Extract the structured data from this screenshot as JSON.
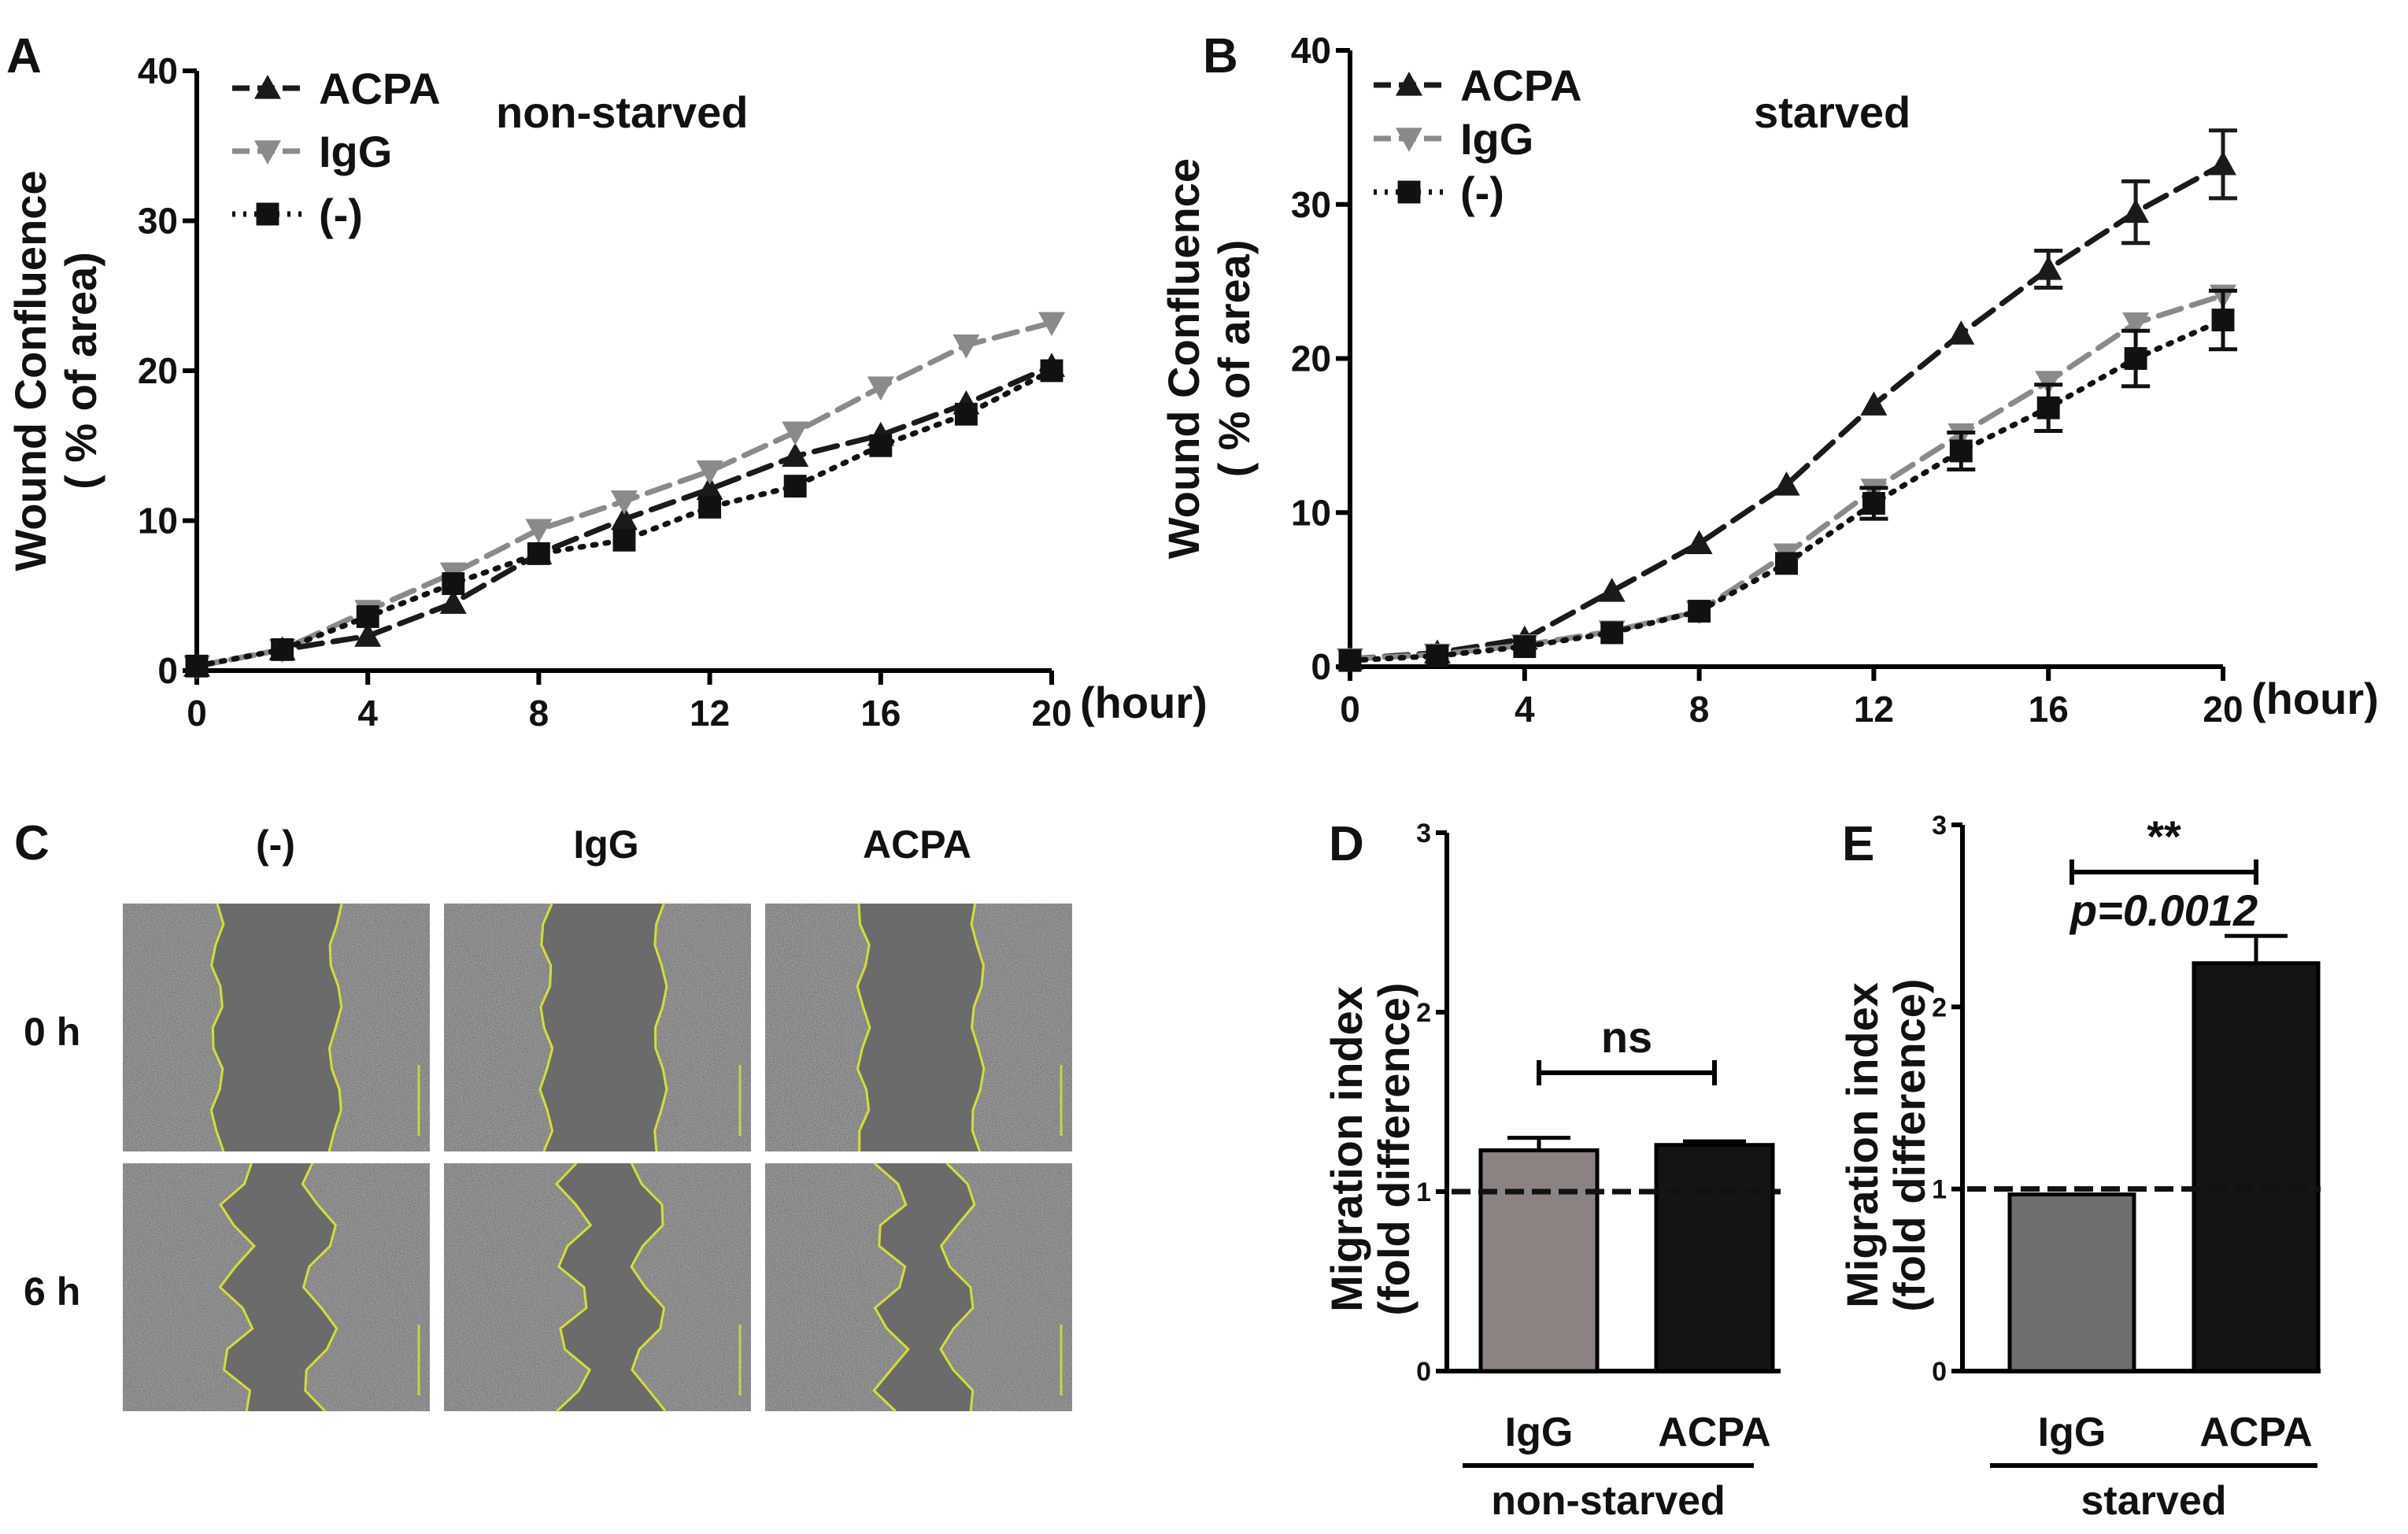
{
  "colors": {
    "acpa": "#1a1a1a",
    "igg": "#8a8a8a",
    "neg": "#111111",
    "bar_igg_d": "#8c8282",
    "bar_igg_e": "#6e6e6e",
    "bar_acpa": "#141414",
    "outline": "#d4dd3a",
    "micro": "#6a6a6a"
  },
  "legend": {
    "acpa": "ACPA",
    "igg": "IgG",
    "neg": "(-)"
  },
  "panel_c": {
    "letter": "C",
    "col_labels": [
      "(-)",
      "IgG",
      "ACPA"
    ],
    "row_labels": [
      "0 h",
      "6 h"
    ]
  },
  "chart_data": [
    {
      "id": "A",
      "type": "line",
      "letter": "A",
      "title": "non-starved",
      "ylabel": "Wound Confluence",
      "ylabel2": "( % of area)",
      "xunit": "(hour)",
      "xlim": [
        0,
        20
      ],
      "ylim": [
        0,
        40
      ],
      "xticks": [
        0,
        4,
        8,
        12,
        16,
        20
      ],
      "yticks": [
        0,
        10,
        20,
        30,
        40
      ],
      "x": [
        0,
        2,
        4,
        6,
        8,
        10,
        12,
        14,
        16,
        18,
        20
      ],
      "series": [
        {
          "name": "ACPA",
          "values": [
            0.3,
            1.4,
            2.3,
            4.5,
            7.8,
            10.1,
            12.1,
            14.3,
            15.7,
            17.8,
            20.3
          ]
        },
        {
          "name": "IgG",
          "values": [
            0.3,
            1.4,
            4.0,
            6.5,
            9.4,
            11.3,
            13.3,
            15.9,
            18.9,
            21.7,
            23.2
          ]
        },
        {
          "name": "(-)",
          "values": [
            0.3,
            1.4,
            3.6,
            5.8,
            7.8,
            8.7,
            10.9,
            12.3,
            15.0,
            17.1,
            20.0
          ]
        }
      ]
    },
    {
      "id": "B",
      "type": "line",
      "letter": "B",
      "title": "starved",
      "ylabel": "Wound Confluence",
      "ylabel2": "( % of area)",
      "xunit": "(hour)",
      "xlim": [
        0,
        20
      ],
      "ylim": [
        0,
        40
      ],
      "xticks": [
        0,
        4,
        8,
        12,
        16,
        20
      ],
      "yticks": [
        0,
        10,
        20,
        30,
        40
      ],
      "x": [
        0,
        2,
        4,
        6,
        8,
        10,
        12,
        14,
        16,
        18,
        20
      ],
      "series": [
        {
          "name": "ACPA",
          "values": [
            0.5,
            0.9,
            1.8,
            4.9,
            8.0,
            11.8,
            17.0,
            21.6,
            25.8,
            29.5,
            32.6
          ],
          "err": [
            0,
            0,
            0,
            0,
            0,
            0,
            0,
            0,
            1.2,
            2.0,
            2.2
          ]
        },
        {
          "name": "IgG",
          "values": [
            0.5,
            0.8,
            1.4,
            2.3,
            3.6,
            7.3,
            11.5,
            15.1,
            18.5,
            22.3,
            24.1
          ],
          "err": [
            0,
            0,
            0,
            0,
            0,
            0,
            0,
            0,
            0,
            0,
            0
          ]
        },
        {
          "name": "(-)",
          "values": [
            0.4,
            0.7,
            1.3,
            2.2,
            3.6,
            6.7,
            10.6,
            14.0,
            16.8,
            20.0,
            22.5
          ],
          "err": [
            0,
            0,
            0,
            0,
            0,
            0,
            1.0,
            1.2,
            1.5,
            1.8,
            1.9
          ]
        }
      ]
    },
    {
      "id": "D",
      "type": "bar",
      "letter": "D",
      "ylabel": "Migration index",
      "ylabel2": "(fold difference)",
      "ylim": [
        0,
        3
      ],
      "yticks": [
        0,
        1,
        2,
        3
      ],
      "categories": [
        "IgG",
        "ACPA"
      ],
      "values": [
        1.23,
        1.26
      ],
      "err": [
        0.07,
        0.02
      ],
      "reference_line": 1.0,
      "group_label": "non-starved",
      "significance": "ns"
    },
    {
      "id": "E",
      "type": "bar",
      "letter": "E",
      "ylabel": "Migration index",
      "ylabel2": "(fold difference)",
      "ylim": [
        0,
        3
      ],
      "yticks": [
        0,
        1,
        2,
        3
      ],
      "categories": [
        "IgG",
        "ACPA"
      ],
      "values": [
        0.97,
        2.24
      ],
      "err": [
        0.0,
        0.15
      ],
      "reference_line": 1.0,
      "group_label": "starved",
      "significance": "**",
      "pvalue": "p=0.0012"
    }
  ]
}
